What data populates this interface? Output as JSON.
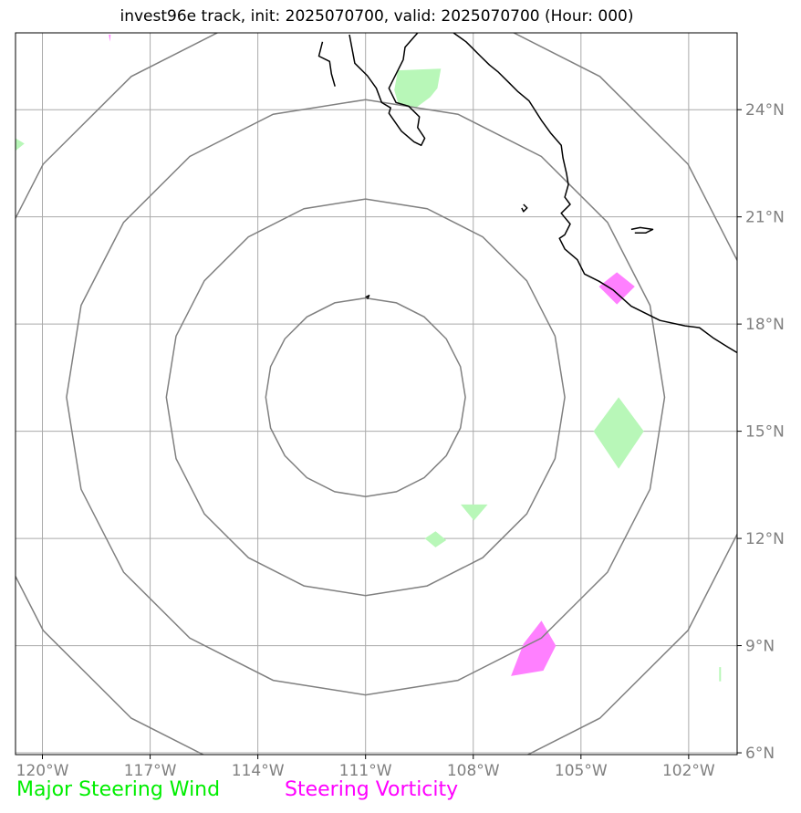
{
  "title": "invest96e track, init: 2025070700, valid: 2025070700 (Hour: 000)",
  "legend": {
    "wind": "Major Steering Wind",
    "vorticity": "Steering Vorticity"
  },
  "colors": {
    "wind": "#00ee00",
    "wind_fill": "#b8f7b8",
    "vorticity": "#ff00ff",
    "vorticity_fill": "#ff80ff",
    "grid": "#aaaaaa",
    "range_rings": "#808080",
    "coast": "#000000"
  },
  "map": {
    "projection": "plate carree",
    "lon_range": [
      -120.75,
      -100.65
    ],
    "lat_range": [
      5.95,
      26.15
    ],
    "lon_ticks": [
      -120,
      -117,
      -114,
      -111,
      -108,
      -105,
      -102
    ],
    "lon_labels": [
      "120°W",
      "117°W",
      "114°W",
      "111°W",
      "108°W",
      "105°W",
      "102°W"
    ],
    "lat_ticks": [
      6,
      9,
      12,
      15,
      18,
      21,
      24
    ],
    "lat_labels": [
      "6°N",
      "9°N",
      "12°N",
      "15°N",
      "18°N",
      "21°N",
      "24°N"
    ],
    "storm_center": {
      "lon": -111.0,
      "lat": 15.95
    },
    "range_rings_deg": [
      2.78,
      5.55,
      8.33,
      11.1
    ]
  },
  "wind_areas": [
    [
      [
        -110.1,
        25.1
      ],
      [
        -108.9,
        25.15
      ],
      [
        -109.0,
        24.6
      ],
      [
        -109.2,
        24.35
      ],
      [
        -109.6,
        24.05
      ],
      [
        -110.1,
        24.2
      ],
      [
        -110.2,
        24.55
      ]
    ],
    [
      [
        -104.65,
        15.0
      ],
      [
        -103.95,
        15.95
      ],
      [
        -103.25,
        15.0
      ],
      [
        -103.95,
        13.95
      ]
    ],
    [
      [
        -108.35,
        12.95
      ],
      [
        -107.6,
        12.95
      ],
      [
        -107.98,
        12.5
      ]
    ],
    [
      [
        -109.35,
        12.0
      ],
      [
        -109.05,
        12.2
      ],
      [
        -108.75,
        11.95
      ],
      [
        -109.05,
        11.75
      ]
    ],
    [
      [
        -120.75,
        23.2
      ],
      [
        -120.5,
        23.05
      ],
      [
        -120.75,
        22.85
      ]
    ],
    [
      [
        -101.15,
        8.4
      ],
      [
        -101.1,
        8.4
      ],
      [
        -101.1,
        8.0
      ],
      [
        -101.15,
        8.0
      ]
    ]
  ],
  "vorticity_areas": [
    [
      [
        -104.5,
        19.05
      ],
      [
        -104.0,
        19.45
      ],
      [
        -103.5,
        19.05
      ],
      [
        -104.0,
        18.55
      ]
    ],
    [
      [
        -106.95,
        8.15
      ],
      [
        -106.6,
        9.05
      ],
      [
        -106.1,
        9.7
      ],
      [
        -105.7,
        9.0
      ],
      [
        -106.05,
        8.3
      ]
    ],
    [
      [
        -118.15,
        26.1
      ],
      [
        -118.1,
        26.1
      ],
      [
        -118.12,
        25.9
      ]
    ]
  ],
  "coastlines": [
    [
      [
        -111.45,
        26.1
      ],
      [
        -111.3,
        25.3
      ],
      [
        -110.95,
        24.95
      ],
      [
        -110.7,
        24.6
      ],
      [
        -110.55,
        24.2
      ],
      [
        -110.3,
        24.05
      ],
      [
        -110.35,
        23.9
      ],
      [
        -110.0,
        23.4
      ],
      [
        -109.65,
        23.1
      ],
      [
        -109.45,
        23.0
      ],
      [
        -109.35,
        23.2
      ],
      [
        -109.55,
        23.5
      ],
      [
        -109.5,
        23.8
      ],
      [
        -109.8,
        24.1
      ],
      [
        -110.15,
        24.2
      ],
      [
        -110.35,
        24.6
      ],
      [
        -110.2,
        24.9
      ],
      [
        -109.95,
        25.4
      ],
      [
        -109.9,
        25.75
      ],
      [
        -109.55,
        26.15
      ]
    ],
    [
      [
        -108.55,
        26.15
      ],
      [
        -108.2,
        25.9
      ],
      [
        -108.05,
        25.75
      ],
      [
        -107.8,
        25.5
      ],
      [
        -107.55,
        25.25
      ],
      [
        -107.3,
        25.05
      ],
      [
        -107.0,
        24.75
      ],
      [
        -106.75,
        24.5
      ],
      [
        -106.45,
        24.25
      ],
      [
        -106.1,
        23.7
      ],
      [
        -105.85,
        23.35
      ],
      [
        -105.55,
        23.0
      ],
      [
        -105.5,
        22.65
      ],
      [
        -105.4,
        22.2
      ],
      [
        -105.35,
        21.9
      ],
      [
        -105.45,
        21.55
      ],
      [
        -105.3,
        21.35
      ],
      [
        -105.55,
        21.1
      ],
      [
        -105.3,
        20.8
      ],
      [
        -105.45,
        20.5
      ],
      [
        -105.6,
        20.4
      ],
      [
        -105.45,
        20.1
      ],
      [
        -105.1,
        19.8
      ],
      [
        -104.9,
        19.4
      ],
      [
        -104.5,
        19.2
      ],
      [
        -104.1,
        18.95
      ],
      [
        -103.6,
        18.5
      ],
      [
        -102.8,
        18.1
      ],
      [
        -102.1,
        17.95
      ],
      [
        -101.7,
        17.9
      ],
      [
        -101.3,
        17.6
      ],
      [
        -100.9,
        17.35
      ],
      [
        -100.65,
        17.2
      ]
    ],
    [
      [
        -112.2,
        25.9
      ],
      [
        -112.3,
        25.5
      ],
      [
        -112.0,
        25.35
      ],
      [
        -111.95,
        25.0
      ],
      [
        -111.85,
        24.65
      ]
    ],
    [
      [
        -106.6,
        21.35
      ],
      [
        -106.5,
        21.25
      ],
      [
        -106.6,
        21.15
      ],
      [
        -106.65,
        21.25
      ]
    ],
    [
      [
        -103.6,
        20.65
      ],
      [
        -103.35,
        20.7
      ],
      [
        -103.0,
        20.65
      ],
      [
        -103.2,
        20.55
      ],
      [
        -103.5,
        20.55
      ]
    ],
    [
      [
        -111.0,
        18.75
      ],
      [
        -110.9,
        18.8
      ],
      [
        -110.95,
        18.7
      ]
    ]
  ]
}
